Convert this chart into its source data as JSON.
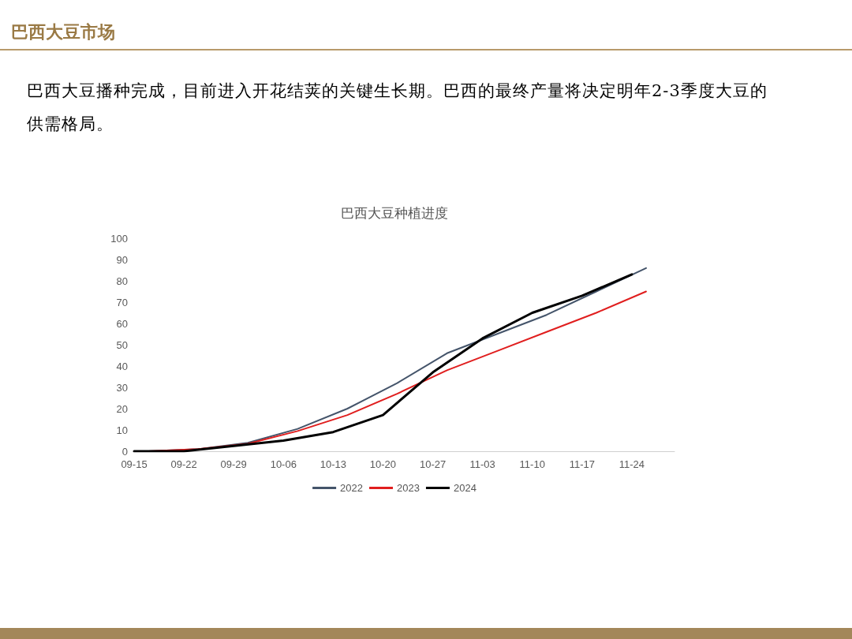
{
  "chart_data": {
    "type": "line",
    "title": "巴西大豆种植进度",
    "annotations": [
      "巴西大豆市场",
      "巴西大豆播种完成，目前进入开花结荚的关键生长期。巴西的最终产量将决定明年2-3季度大豆的供需格局。"
    ],
    "xlim": [
      "--09-15",
      "--11-30"
    ],
    "xticks": [
      {
        "value": "--09-15",
        "label": "09-15"
      },
      {
        "value": "--09-22",
        "label": "09-22"
      },
      {
        "value": "--09-29",
        "label": "09-29"
      },
      {
        "value": "--10-06",
        "label": "10-06"
      },
      {
        "value": "--10-13",
        "label": "10-13"
      },
      {
        "value": "--10-20",
        "label": "10-20"
      },
      {
        "value": "--10-27",
        "label": "10-27"
      },
      {
        "value": "--11-03",
        "label": "11-03"
      },
      {
        "value": "--11-10",
        "label": "11-10"
      },
      {
        "value": "--11-17",
        "label": "11-17"
      },
      {
        "value": "--11-24",
        "label": "11-24"
      }
    ],
    "ylim": [
      0,
      100
    ],
    "yticks": [
      0,
      10,
      20,
      30,
      40,
      50,
      60,
      70,
      80,
      90,
      100
    ],
    "grid": false,
    "legend": "bottom",
    "marker": "none",
    "line_style": "solid",
    "series": [
      {
        "name": "2022",
        "color": "#44546a",
        "x": [
          "--09-17",
          "--09-24",
          "--10-01",
          "--10-08",
          "--10-15",
          "--10-22",
          "--10-29",
          "--11-05",
          "--11-12",
          "--11-19",
          "--11-26"
        ],
        "values": [
          0,
          1,
          4,
          10.5,
          20,
          32,
          46,
          55,
          64,
          75,
          86
        ]
      },
      {
        "name": "2023",
        "color": "#e01e1e",
        "x": [
          "--09-17",
          "--09-24",
          "--10-01",
          "--10-08",
          "--10-15",
          "--10-22",
          "--10-29",
          "--11-05",
          "--11-12",
          "--11-19",
          "--11-26"
        ],
        "values": [
          0,
          1,
          3.5,
          9.5,
          17,
          27,
          38,
          47,
          56,
          65,
          75
        ]
      },
      {
        "name": "2024",
        "color": "#000000",
        "x": [
          "--09-15",
          "--09-22",
          "--09-29",
          "--10-06",
          "--10-13",
          "--10-20",
          "--10-27",
          "--11-03",
          "--11-10",
          "--11-17",
          "--11-24"
        ],
        "values": [
          0,
          0,
          2.5,
          5,
          9,
          17,
          37,
          53,
          65,
          73,
          83
        ]
      }
    ]
  }
}
